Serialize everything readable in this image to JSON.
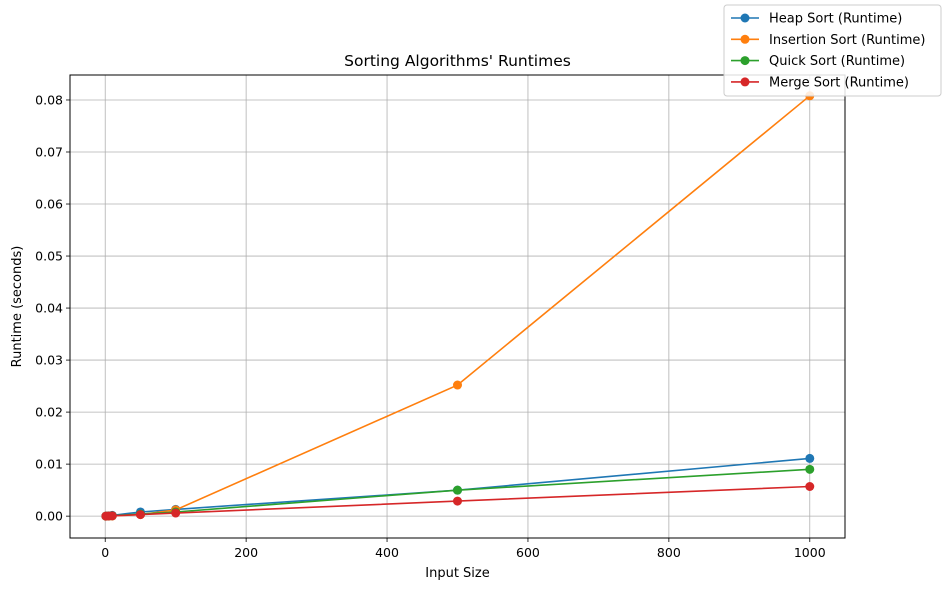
{
  "chart_data": {
    "type": "line",
    "title": "Sorting Algorithms' Runtimes",
    "xlabel": "Input Size",
    "ylabel": "Runtime (seconds)",
    "xlim": [
      -50,
      1050
    ],
    "ylim": [
      -0.0042,
      0.0848
    ],
    "xticks": [
      0,
      200,
      400,
      600,
      800,
      1000
    ],
    "yticks": [
      0.0,
      0.01,
      0.02,
      0.03,
      0.04,
      0.05,
      0.06,
      0.07,
      0.08
    ],
    "xtick_labels": [
      "0",
      "200",
      "400",
      "600",
      "800",
      "1000"
    ],
    "ytick_labels": [
      "0.00",
      "0.01",
      "0.02",
      "0.03",
      "0.04",
      "0.05",
      "0.06",
      "0.07",
      "0.08"
    ],
    "grid": true,
    "legend_position": "top-right",
    "x": [
      1,
      5,
      10,
      50,
      100,
      500,
      1000
    ],
    "series": [
      {
        "name": "Heap Sort (Runtime)",
        "color": "#1f77b4",
        "values": [
          1e-05,
          5e-05,
          0.00015,
          0.0008,
          0.0013,
          0.005,
          0.0111
        ]
      },
      {
        "name": "Insertion Sort (Runtime)",
        "color": "#ff7f0e",
        "values": [
          0.0,
          1e-05,
          3e-05,
          0.0003,
          0.0012,
          0.0252,
          0.0808
        ]
      },
      {
        "name": "Quick Sort (Runtime)",
        "color": "#2ca02c",
        "values": [
          1e-05,
          3e-05,
          8e-05,
          0.0004,
          0.0008,
          0.005,
          0.009
        ]
      },
      {
        "name": "Merge Sort (Runtime)",
        "color": "#d62728",
        "values": [
          1e-05,
          3e-05,
          6e-05,
          0.0003,
          0.0006,
          0.0029,
          0.0057
        ]
      }
    ]
  }
}
